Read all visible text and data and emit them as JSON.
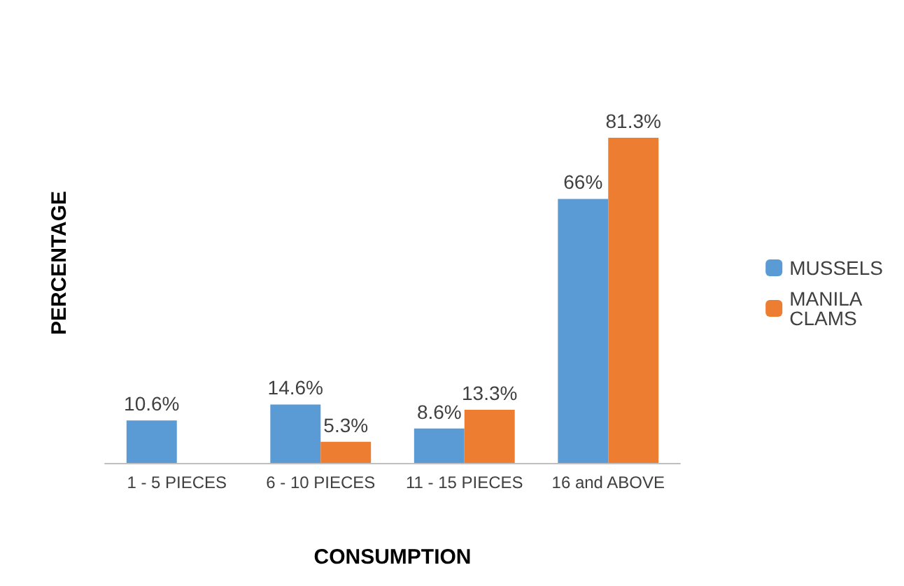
{
  "chart_data": {
    "type": "bar",
    "xlabel": "CONSUMPTION",
    "ylabel": "PERCENTAGE",
    "categories": [
      "1 - 5 PIECES",
      "6 - 10 PIECES",
      "11 - 15 PIECES",
      "16 and ABOVE"
    ],
    "series": [
      {
        "name": "MUSSELS",
        "color": "#5b9bd5",
        "values": [
          10.6,
          14.6,
          8.6,
          66
        ],
        "value_labels": [
          "10.6%",
          "14.6%",
          "8.6%",
          "66%"
        ]
      },
      {
        "name": "MANILA CLAMS",
        "color": "#ed7d31",
        "values": [
          null,
          5.3,
          13.3,
          81.3
        ],
        "value_labels": [
          null,
          "5.3%",
          "13.3%",
          "81.3%"
        ]
      }
    ],
    "legend": "right",
    "grid": false
  }
}
